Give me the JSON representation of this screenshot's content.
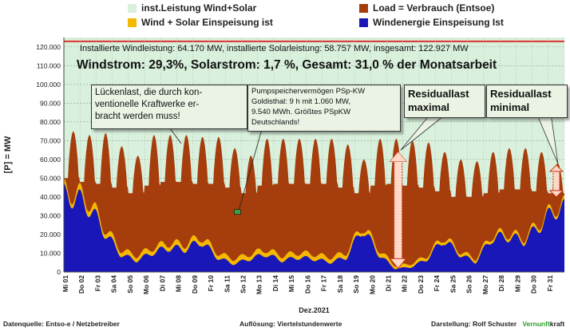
{
  "legend": {
    "items": [
      {
        "label": "inst.Leistung Wind+Solar",
        "color": "#d8f0dc"
      },
      {
        "label": "Load =  Verbrauch (Entsoe)",
        "color": "#a53d0c"
      },
      {
        "label": "Wind + Solar Einspeisung ist",
        "color": "#f5b800"
      },
      {
        "label": "Windenergie Einspeisung Ist",
        "color": "#1a17b8"
      }
    ]
  },
  "header": {
    "capacity_line": "Installierte Windleistung: 64.170 MW, installierte Solarleistung: 58.757 MW, insgesamt: 122.927 MW",
    "share_line": "Windstrom: 29,3%, Solarstrom: 1,7 %, Gesamt: 31,0 % der Monatsarbeit"
  },
  "callouts": {
    "gap": {
      "lines": [
        "Lückenlast, die durch kon-",
        "ventionelle Kraftwerke er-",
        "bracht werden muss!"
      ]
    },
    "pump": {
      "lines": [
        "Pumpspeichervermögen PSp-KW",
        "Goldisthal: 9 h mit 1.060 MW,",
        "9.540 MWh. Größtes PSpKW",
        "Deutschlands!"
      ]
    },
    "res_max": {
      "lines": [
        "Residuallast",
        "maximal"
      ]
    },
    "res_min": {
      "lines": [
        "Residuallast",
        "minimal"
      ]
    }
  },
  "footer": {
    "source": "Datenquelle: Entso-e  / Netzbetreiber",
    "resolution": "Auflösung: Viertelstundenwerte",
    "author_label": "Darstellung:  Rolf Schuster",
    "brand_part1": "Vernunft",
    "brand_part2": "kraft",
    "brand_color": "#2a9d2a"
  },
  "chart_data": {
    "type": "area",
    "ylabel": "[P] = MW",
    "xlabel": "Dez.2021",
    "ylim": [
      0,
      125000
    ],
    "yticks": [
      0,
      10000,
      20000,
      30000,
      40000,
      50000,
      60000,
      70000,
      80000,
      90000,
      100000,
      110000,
      120000
    ],
    "ytick_labels": [
      "0",
      "10.000",
      "20.000",
      "30.000",
      "40.000",
      "50.000",
      "60.000",
      "70.000",
      "80.000",
      "90.000",
      "100.000",
      "110.000",
      "120.000"
    ],
    "grid": true,
    "categories": [
      "Mi 01",
      "Do 02",
      "Fr 03",
      "Sa 04",
      "So 05",
      "Mo 06",
      "Di 07",
      "Mi 08",
      "Do 09",
      "Fr 10",
      "Sa 11",
      "So 12",
      "Mo 13",
      "Di 14",
      "Mi 15",
      "Do 16",
      "Fr 17",
      "Sa 18",
      "So 19",
      "Mo 20",
      "Di 21",
      "Mi 22",
      "Do 23",
      "Fr 24",
      "Sa 25",
      "So 26",
      "Mo 27",
      "Di 28",
      "Mi 29",
      "Do 30",
      "Fr 31"
    ],
    "installed_capacity": 122927,
    "series": [
      {
        "name": "Load =  Verbrauch (Entsoe)",
        "color": "#a53d0c",
        "day_peak": [
          75000,
          73000,
          74000,
          67000,
          62000,
          73000,
          73000,
          73000,
          72000,
          72000,
          66000,
          62000,
          71000,
          71000,
          71000,
          71000,
          71000,
          68000,
          60000,
          71000,
          71000,
          70000,
          69000,
          64000,
          60000,
          59000,
          64000,
          66000,
          66000,
          64000,
          58000
        ],
        "night_min": [
          50000,
          48000,
          47000,
          45000,
          42000,
          46000,
          48000,
          48000,
          47000,
          47000,
          45000,
          42000,
          46000,
          47000,
          47000,
          47000,
          47000,
          45000,
          42000,
          46000,
          47000,
          46000,
          45000,
          43000,
          40000,
          40000,
          42000,
          44000,
          44000,
          43000,
          42000
        ]
      },
      {
        "name": "Wind + Solar Einspeisung ist",
        "color": "#f5b800",
        "day_max": [
          50000,
          45000,
          28000,
          14000,
          10000,
          15000,
          18000,
          17000,
          22000,
          12000,
          8000,
          11000,
          14000,
          10000,
          12000,
          11000,
          9000,
          12000,
          29000,
          14000,
          4000,
          5000,
          10000,
          22000,
          13000,
          8000,
          23000,
          24000,
          21000,
          31000,
          41000
        ]
      },
      {
        "name": "Windenergie Einspeisung Ist",
        "color": "#1a17b8",
        "day_max": [
          47000,
          41000,
          25000,
          11000,
          7000,
          12000,
          15000,
          14000,
          19000,
          9000,
          5000,
          8000,
          11000,
          7000,
          9000,
          8000,
          6000,
          9000,
          27000,
          11000,
          2000,
          3000,
          8000,
          20000,
          11000,
          6000,
          21000,
          22000,
          19000,
          29000,
          39000
        ]
      }
    ]
  }
}
